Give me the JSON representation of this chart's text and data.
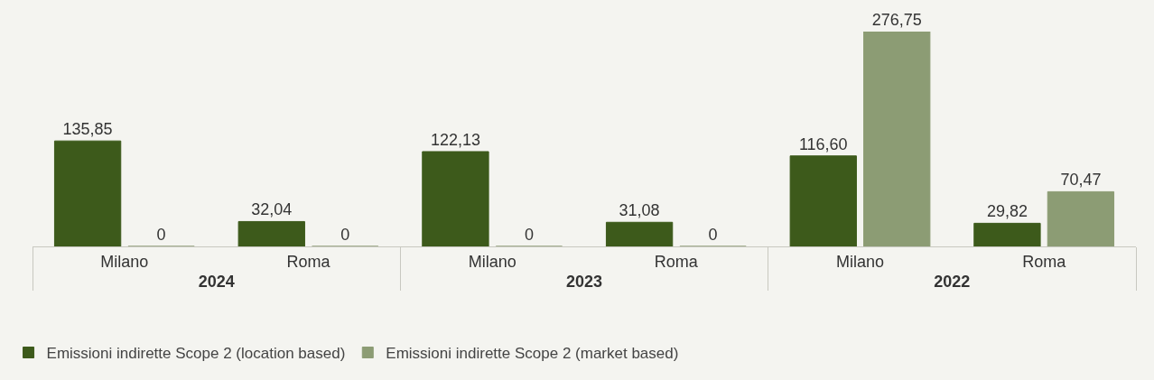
{
  "chart_data": {
    "type": "bar",
    "categories": [
      "Milano",
      "Roma",
      "Milano",
      "Roma",
      "Milano",
      "Roma"
    ],
    "annotations": [
      "2024",
      "2023",
      "2022"
    ],
    "series": [
      {
        "name": "Emissioni indirette Scope 2 (location based)",
        "color": "#3d5a1b",
        "values": [
          135.85,
          32.04,
          122.13,
          31.08,
          116.6,
          29.82
        ],
        "value_labels": [
          "135,85",
          "32,04",
          "122,13",
          "31,08",
          "116,60",
          "29,82"
        ]
      },
      {
        "name": "Emissioni indirette Scope 2 (market based)",
        "color": "#8c9c74",
        "values": [
          0,
          0,
          0,
          0,
          276.75,
          70.47
        ],
        "value_labels": [
          "0",
          "0",
          "0",
          "0",
          "276,75",
          "70,47"
        ]
      }
    ],
    "legend": "bottom left"
  }
}
